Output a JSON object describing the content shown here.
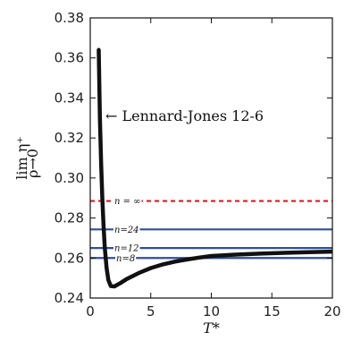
{
  "chart_data": {
    "type": "line",
    "xlabel": "T*",
    "ylabel": "lim η⁺",
    "ylabel_sub": "ρ→0",
    "xlim": [
      0,
      20
    ],
    "ylim": [
      0.24,
      0.38
    ],
    "xticks": [
      "0",
      "5",
      "10",
      "15",
      "20"
    ],
    "yticks": [
      "0.24",
      "0.26",
      "0.28",
      "0.30",
      "0.32",
      "0.34",
      "0.36",
      "0.38"
    ],
    "grid": false,
    "annotation": {
      "text": "← Lennard-Jones 12-6"
    },
    "series": [
      {
        "color": "#111111",
        "x": [
          0.7,
          0.8,
          0.9,
          1.0,
          1.1,
          1.2,
          1.35,
          1.5,
          1.7,
          2.0,
          2.5,
          3.0,
          4.0,
          5.0,
          6.0,
          7.0,
          8.0,
          9.0,
          10.0,
          12.0,
          14.0,
          16.0,
          18.0,
          20.0
        ],
        "y": [
          0.364,
          0.33,
          0.307,
          0.29,
          0.276,
          0.265,
          0.255,
          0.249,
          0.246,
          0.2458,
          0.2475,
          0.2495,
          0.2525,
          0.255,
          0.2568,
          0.2582,
          0.2593,
          0.2602,
          0.261,
          0.2617,
          0.2622,
          0.2626,
          0.2629,
          0.2632
        ]
      }
    ],
    "hlines": [
      {
        "label": "n = ∞",
        "y": 0.2885,
        "color": "#e8161b",
        "dashed": true
      },
      {
        "label": "n=24",
        "y": 0.2743,
        "color": "#2b4ea3",
        "dashed": false
      },
      {
        "label": "n=12",
        "y": 0.265,
        "color": "#2b4ea3",
        "dashed": false
      },
      {
        "label": "n=8",
        "y": 0.26,
        "color": "#2b4ea3",
        "dashed": false
      }
    ]
  }
}
